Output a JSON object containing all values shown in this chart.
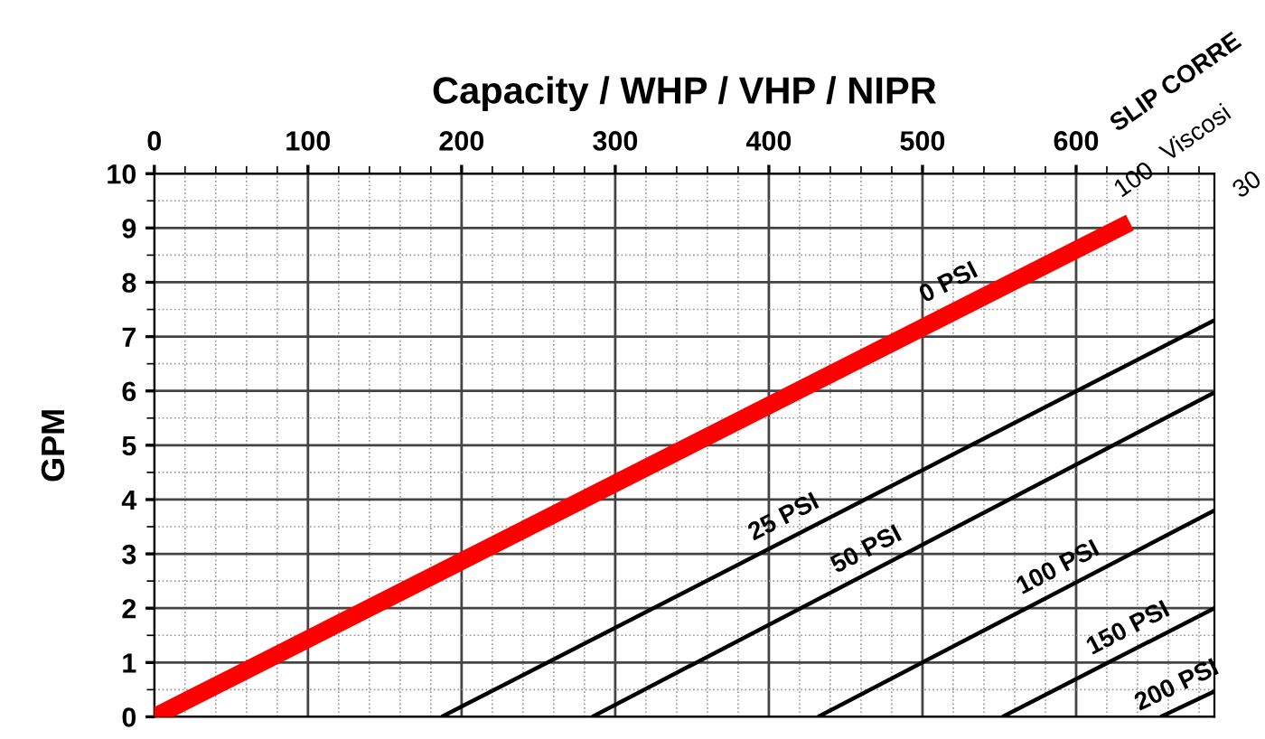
{
  "chart_data": {
    "type": "line",
    "title": "Capacity / WHP / VHP / NIPR",
    "ylabel": "GPM",
    "xlim": [
      0,
      690
    ],
    "ylim": [
      0,
      10
    ],
    "xticks": [
      0,
      100,
      200,
      300,
      400,
      500,
      600
    ],
    "yticks": [
      0,
      1,
      2,
      3,
      4,
      5,
      6,
      7,
      8,
      9,
      10
    ],
    "grid": true,
    "marker": "none",
    "line_style": "solid",
    "series": [
      {
        "name": "0 PSI",
        "color": "#ff0000",
        "x": [
          0,
          635
        ],
        "values": [
          0,
          9.1
        ]
      },
      {
        "name": "25 PSI",
        "color": "#000000",
        "x": [
          187,
          690
        ],
        "values": [
          0,
          7.3
        ]
      },
      {
        "name": "50 PSI",
        "color": "#000000",
        "x": [
          285,
          690
        ],
        "values": [
          0,
          5.97
        ]
      },
      {
        "name": "100 PSI",
        "color": "#000000",
        "x": [
          432,
          690
        ],
        "values": [
          0,
          3.8
        ]
      },
      {
        "name": "150 PSI",
        "color": "#000000",
        "x": [
          552,
          690
        ],
        "values": [
          0,
          2.0
        ]
      },
      {
        "name": "200 PSI",
        "color": "#000000",
        "x": [
          655,
          690
        ],
        "values": [
          0,
          0.47
        ]
      }
    ],
    "annotations": [
      "SLIP CORRE",
      "Viscosi",
      "100",
      "30"
    ]
  }
}
